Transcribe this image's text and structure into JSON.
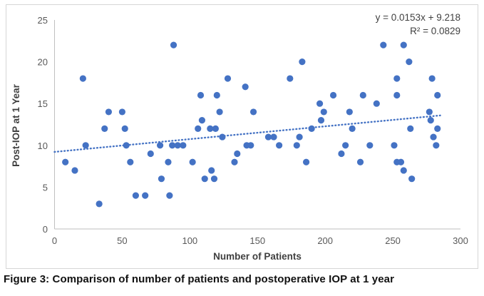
{
  "caption": "Figure 3: Comparison of number of patients and postoperative IOP at 1 year",
  "colors": {
    "marker": "#4472C4",
    "trendline": "#4472C4",
    "axis_line": "#bfbfbf",
    "tick_text": "#595959",
    "axis_title_text": "#404040",
    "equation_text": "#404040",
    "chart_border": "#d6d6d6"
  },
  "chart_data": {
    "type": "scatter",
    "title": "",
    "xlabel": "Number of Patients",
    "ylabel": "Post-IOP at 1 Year",
    "xlim": [
      0,
      300
    ],
    "ylim": [
      0,
      25
    ],
    "xticks": [
      0,
      50,
      100,
      150,
      200,
      250,
      300
    ],
    "yticks": [
      0,
      5,
      10,
      15,
      20,
      25
    ],
    "grid": false,
    "legend": false,
    "equation": "y = 0.0153x + 9.218",
    "r_squared": "R² = 0.0829",
    "trendline": {
      "style": "dotted",
      "slope": 0.0153,
      "intercept": 9.218,
      "x_range": [
        0,
        285
      ]
    },
    "points": [
      [
        8,
        8
      ],
      [
        15,
        7
      ],
      [
        21,
        18
      ],
      [
        23,
        10
      ],
      [
        33,
        3
      ],
      [
        37,
        12
      ],
      [
        40,
        14
      ],
      [
        50,
        14
      ],
      [
        52,
        12
      ],
      [
        53,
        10
      ],
      [
        56,
        8
      ],
      [
        60,
        4
      ],
      [
        67,
        4
      ],
      [
        71,
        9
      ],
      [
        78,
        10
      ],
      [
        79,
        6
      ],
      [
        84,
        8
      ],
      [
        85,
        4
      ],
      [
        87,
        10
      ],
      [
        88,
        22
      ],
      [
        91,
        10
      ],
      [
        95,
        10
      ],
      [
        102,
        8
      ],
      [
        106,
        12
      ],
      [
        108,
        16
      ],
      [
        109,
        13
      ],
      [
        111,
        6
      ],
      [
        115,
        12
      ],
      [
        116,
        7
      ],
      [
        118,
        6
      ],
      [
        119,
        12
      ],
      [
        120,
        16
      ],
      [
        122,
        14
      ],
      [
        124,
        11
      ],
      [
        128,
        18
      ],
      [
        133,
        8
      ],
      [
        135,
        9
      ],
      [
        141,
        17
      ],
      [
        142,
        10
      ],
      [
        145,
        10
      ],
      [
        147,
        14
      ],
      [
        158,
        11
      ],
      [
        162,
        11
      ],
      [
        166,
        10
      ],
      [
        174,
        18
      ],
      [
        179,
        10
      ],
      [
        181,
        11
      ],
      [
        183,
        20
      ],
      [
        186,
        8
      ],
      [
        190,
        12
      ],
      [
        196,
        15
      ],
      [
        197,
        13
      ],
      [
        199,
        14
      ],
      [
        206,
        16
      ],
      [
        212,
        9
      ],
      [
        215,
        10
      ],
      [
        218,
        14
      ],
      [
        220,
        12
      ],
      [
        226,
        8
      ],
      [
        228,
        16
      ],
      [
        233,
        10
      ],
      [
        238,
        15
      ],
      [
        243,
        22
      ],
      [
        251,
        10
      ],
      [
        253,
        8
      ],
      [
        253,
        16
      ],
      [
        253,
        18
      ],
      [
        256,
        8
      ],
      [
        258,
        7
      ],
      [
        258,
        22
      ],
      [
        262,
        20
      ],
      [
        263,
        12
      ],
      [
        264,
        6
      ],
      [
        277,
        14
      ],
      [
        278,
        13
      ],
      [
        279,
        18
      ],
      [
        280,
        11
      ],
      [
        282,
        10
      ],
      [
        283,
        12
      ],
      [
        283,
        16
      ]
    ]
  }
}
